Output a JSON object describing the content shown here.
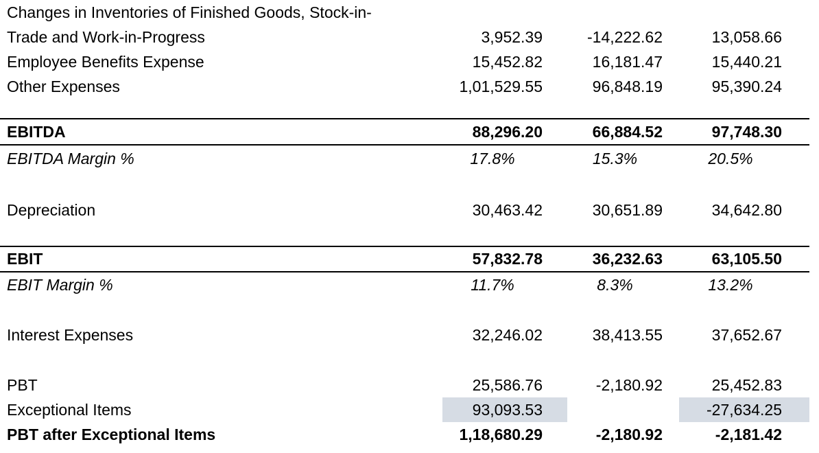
{
  "table": {
    "highlight_color": "#d6dce4",
    "text_color": "#000000",
    "rule_color": "#000000",
    "rows": [
      {
        "label": "Changes in Inventories of Finished Goods, Stock-in-",
        "values": [
          "",
          "",
          ""
        ],
        "emphasis": "none"
      },
      {
        "label": "Trade and Work-in-Progress",
        "values": [
          "3,952.39",
          "-14,222.62",
          "13,058.66"
        ],
        "emphasis": "none"
      },
      {
        "label": "Employee Benefits Expense",
        "values": [
          "15,452.82",
          "16,181.47",
          "15,440.21"
        ],
        "emphasis": "none"
      },
      {
        "label": "Other Expenses",
        "values": [
          "1,01,529.55",
          "96,848.19",
          "95,390.24"
        ],
        "emphasis": "none"
      },
      {
        "label": "EBITDA",
        "values": [
          "88,296.20",
          "66,884.52",
          "97,748.30"
        ],
        "emphasis": "bold",
        "divider": true
      },
      {
        "label": "EBITDA Margin %",
        "values": [
          "17.8%",
          "15.3%",
          "20.5%"
        ],
        "emphasis": "italic",
        "value_align": "center"
      },
      {
        "label": "Depreciation",
        "values": [
          "30,463.42",
          "30,651.89",
          "34,642.80"
        ],
        "emphasis": "none"
      },
      {
        "label": "EBIT",
        "values": [
          "57,832.78",
          "36,232.63",
          "63,105.50"
        ],
        "emphasis": "bold",
        "divider": true
      },
      {
        "label": "EBIT Margin %",
        "values": [
          "11.7%",
          "8.3%",
          "13.2%"
        ],
        "emphasis": "italic",
        "value_align": "center"
      },
      {
        "label": "Interest Expenses",
        "values": [
          "32,246.02",
          "38,413.55",
          "37,652.67"
        ],
        "emphasis": "none"
      },
      {
        "label": "PBT",
        "values": [
          "25,586.76",
          "-2,180.92",
          "25,452.83"
        ],
        "emphasis": "none"
      },
      {
        "label": "Exceptional Items",
        "values": [
          "93,093.53",
          "",
          "-27,634.25"
        ],
        "emphasis": "none",
        "highlight": [
          true,
          false,
          true
        ]
      },
      {
        "label": "PBT after Exceptional Items",
        "values": [
          "1,18,680.29",
          "-2,180.92",
          "-2,181.42"
        ],
        "emphasis": "bold"
      }
    ]
  }
}
